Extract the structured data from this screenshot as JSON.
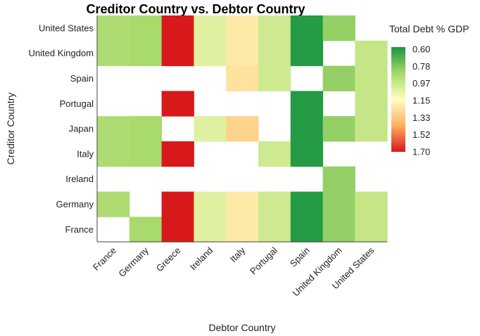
{
  "chart_data": {
    "type": "heatmap",
    "title": "Creditor Country vs. Debtor Country",
    "xlabel": "Debtor Country",
    "ylabel": "Creditor Country",
    "x_categories": [
      "France",
      "Germany",
      "Greece",
      "Ireland",
      "Italy",
      "Portugal",
      "Spain",
      "United Kingdom",
      "United States"
    ],
    "y_categories": [
      "United States",
      "United Kingdom",
      "Spain",
      "Portugal",
      "Japan",
      "Italy",
      "Ireland",
      "Germany",
      "France"
    ],
    "values": [
      [
        0.9,
        0.88,
        1.7,
        1.05,
        1.22,
        1.0,
        0.62,
        0.84,
        null
      ],
      [
        0.9,
        0.88,
        1.7,
        1.05,
        1.22,
        1.0,
        0.62,
        null,
        0.97
      ],
      [
        null,
        null,
        null,
        null,
        1.25,
        1.0,
        null,
        0.84,
        0.97
      ],
      [
        null,
        null,
        1.7,
        null,
        null,
        null,
        0.62,
        null,
        0.97
      ],
      [
        0.9,
        0.88,
        null,
        1.05,
        1.3,
        null,
        0.62,
        0.84,
        0.97
      ],
      [
        0.9,
        0.88,
        1.7,
        null,
        null,
        1.0,
        0.62,
        null,
        null
      ],
      [
        null,
        null,
        null,
        null,
        null,
        null,
        null,
        0.84,
        null
      ],
      [
        0.9,
        null,
        1.7,
        1.05,
        1.22,
        1.0,
        0.62,
        0.84,
        0.97
      ],
      [
        null,
        0.88,
        1.7,
        1.05,
        1.22,
        1.0,
        0.62,
        0.84,
        0.97
      ]
    ],
    "legend": {
      "title": "Total Debt % GDP",
      "ticks": [
        "0.60",
        "0.78",
        "0.97",
        "1.15",
        "1.33",
        "1.52",
        "1.70"
      ],
      "min": 0.6,
      "max": 1.7,
      "placement": "right"
    },
    "colors": {
      "low": "#1a9641",
      "mid_low": "#a6d96a",
      "mid": "#ffffbf",
      "mid_high": "#fdae61",
      "high": "#d7191c"
    }
  }
}
